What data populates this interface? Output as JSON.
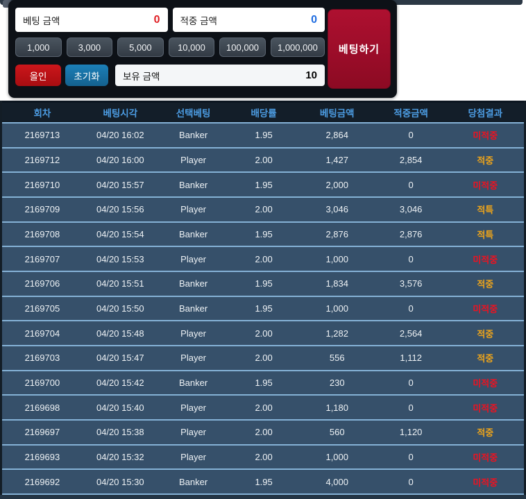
{
  "bet_panel": {
    "bet_amount": {
      "label": "베팅 금액",
      "value": "0"
    },
    "win_amount": {
      "label": "적중 금액",
      "value": "0"
    },
    "quick_amounts": [
      "1,000",
      "3,000",
      "5,000",
      "10,000",
      "100,000",
      "1,000,000"
    ],
    "all_in_label": "올인",
    "reset_label": "초기화",
    "balance": {
      "label": "보유 금액",
      "value": "10"
    },
    "bet_button_label": "베팅하기"
  },
  "colors": {
    "accent_red": "#e01f24",
    "accent_blue": "#1e6ce0",
    "bet_button": "#a60d2c",
    "result_miss": "#ee1220",
    "result_hit": "#eda41b",
    "row_bg": "#36506a",
    "row_separator": "#85b2d6",
    "header_text": "#4c9ce2"
  },
  "table": {
    "headers": [
      "회차",
      "베팅시각",
      "선택베팅",
      "배당률",
      "베팅금액",
      "적중금액",
      "당첨결과"
    ],
    "rows": [
      {
        "round": "2169713",
        "time": "04/20 16:02",
        "pick": "Banker",
        "odds": "1.95",
        "bet": "2,864",
        "win": "0",
        "result": "미적중",
        "result_type": "miss"
      },
      {
        "round": "2169712",
        "time": "04/20 16:00",
        "pick": "Player",
        "odds": "2.00",
        "bet": "1,427",
        "win": "2,854",
        "result": "적중",
        "result_type": "hit"
      },
      {
        "round": "2169710",
        "time": "04/20 15:57",
        "pick": "Banker",
        "odds": "1.95",
        "bet": "2,000",
        "win": "0",
        "result": "미적중",
        "result_type": "miss"
      },
      {
        "round": "2169709",
        "time": "04/20 15:56",
        "pick": "Player",
        "odds": "2.00",
        "bet": "3,046",
        "win": "3,046",
        "result": "적특",
        "result_type": "hit"
      },
      {
        "round": "2169708",
        "time": "04/20 15:54",
        "pick": "Banker",
        "odds": "1.95",
        "bet": "2,876",
        "win": "2,876",
        "result": "적특",
        "result_type": "hit"
      },
      {
        "round": "2169707",
        "time": "04/20 15:53",
        "pick": "Player",
        "odds": "2.00",
        "bet": "1,000",
        "win": "0",
        "result": "미적중",
        "result_type": "miss"
      },
      {
        "round": "2169706",
        "time": "04/20 15:51",
        "pick": "Banker",
        "odds": "1.95",
        "bet": "1,834",
        "win": "3,576",
        "result": "적중",
        "result_type": "hit"
      },
      {
        "round": "2169705",
        "time": "04/20 15:50",
        "pick": "Banker",
        "odds": "1.95",
        "bet": "1,000",
        "win": "0",
        "result": "미적중",
        "result_type": "miss"
      },
      {
        "round": "2169704",
        "time": "04/20 15:48",
        "pick": "Player",
        "odds": "2.00",
        "bet": "1,282",
        "win": "2,564",
        "result": "적중",
        "result_type": "hit"
      },
      {
        "round": "2169703",
        "time": "04/20 15:47",
        "pick": "Player",
        "odds": "2.00",
        "bet": "556",
        "win": "1,112",
        "result": "적중",
        "result_type": "hit"
      },
      {
        "round": "2169700",
        "time": "04/20 15:42",
        "pick": "Banker",
        "odds": "1.95",
        "bet": "230",
        "win": "0",
        "result": "미적중",
        "result_type": "miss"
      },
      {
        "round": "2169698",
        "time": "04/20 15:40",
        "pick": "Player",
        "odds": "2.00",
        "bet": "1,180",
        "win": "0",
        "result": "미적중",
        "result_type": "miss"
      },
      {
        "round": "2169697",
        "time": "04/20 15:38",
        "pick": "Player",
        "odds": "2.00",
        "bet": "560",
        "win": "1,120",
        "result": "적중",
        "result_type": "hit"
      },
      {
        "round": "2169693",
        "time": "04/20 15:32",
        "pick": "Player",
        "odds": "2.00",
        "bet": "1,000",
        "win": "0",
        "result": "미적중",
        "result_type": "miss"
      },
      {
        "round": "2169692",
        "time": "04/20 15:30",
        "pick": "Banker",
        "odds": "1.95",
        "bet": "4,000",
        "win": "0",
        "result": "미적중",
        "result_type": "miss"
      }
    ]
  }
}
